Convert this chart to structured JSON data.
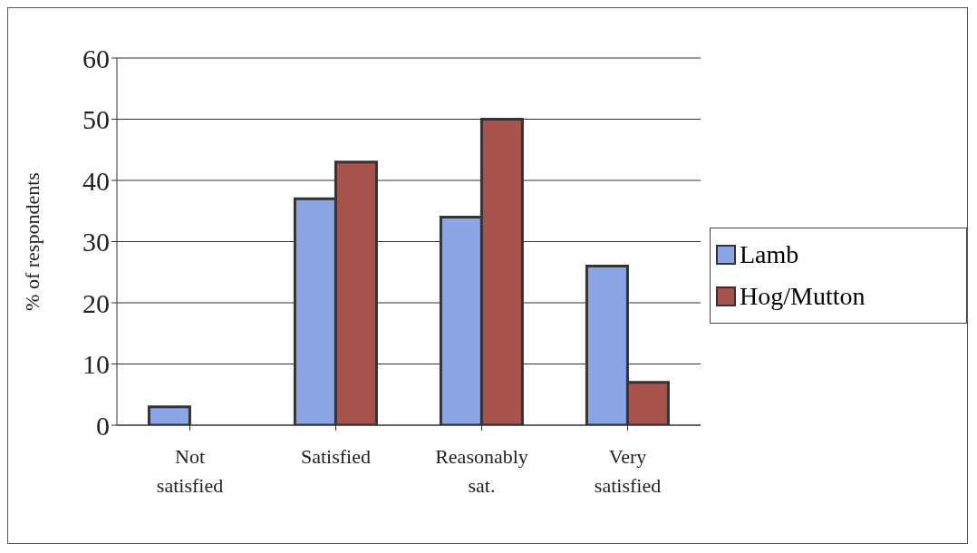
{
  "chart_data": {
    "type": "bar",
    "ylabel": "% of respondents",
    "categories": [
      "Not satisfied",
      "Satisfied",
      "Reasonably sat.",
      "Very satisfied"
    ],
    "series": [
      {
        "name": "Lamb",
        "color": "#8aa6e6",
        "values": [
          3,
          37,
          34,
          26
        ]
      },
      {
        "name": "Hog/Mutton",
        "color": "#a8524c",
        "values": [
          0,
          43,
          50,
          7
        ]
      }
    ],
    "ylim": [
      0,
      60
    ],
    "yticks": [
      0,
      10,
      20,
      30,
      40,
      50,
      60
    ],
    "grid": "y",
    "legend": "right"
  }
}
